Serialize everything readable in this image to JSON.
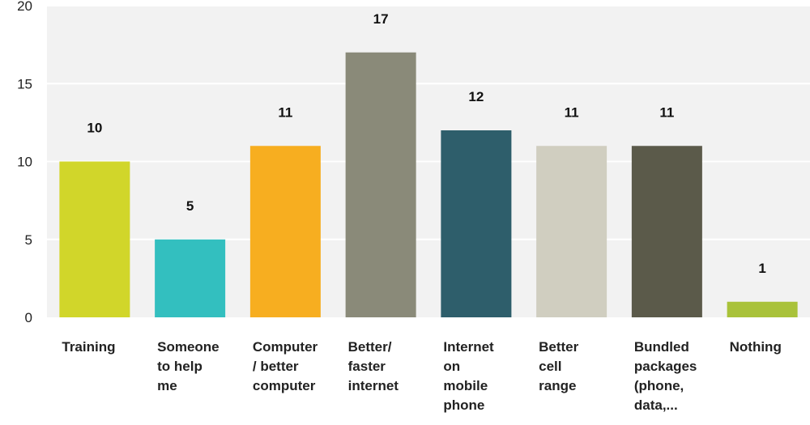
{
  "chart_data": {
    "type": "bar",
    "title": "",
    "xlabel": "",
    "ylabel": "",
    "ylim": [
      0,
      20
    ],
    "yticks": [
      0,
      5,
      10,
      15,
      20
    ],
    "grid": true,
    "categories": [
      [
        "Training"
      ],
      [
        "Someone",
        "to help",
        "me"
      ],
      [
        "Computer",
        "/ better",
        "computer"
      ],
      [
        "Better/",
        "faster",
        "internet"
      ],
      [
        "Internet",
        "on",
        "mobile",
        "phone"
      ],
      [
        "Better",
        "cell",
        "range"
      ],
      [
        "Bundled",
        "packages",
        "(phone,",
        "data,..."
      ],
      [
        "Nothing"
      ]
    ],
    "values": [
      10,
      5,
      11,
      17,
      12,
      11,
      11,
      1
    ],
    "colors": [
      "#d1d62a",
      "#33bfbf",
      "#f7ae20",
      "#8a8a79",
      "#2e5e6b",
      "#d0cec0",
      "#5b5a4a",
      "#a9c23a"
    ],
    "plot_background": "#f2f2f2",
    "gridline_color": "#ffffff"
  }
}
